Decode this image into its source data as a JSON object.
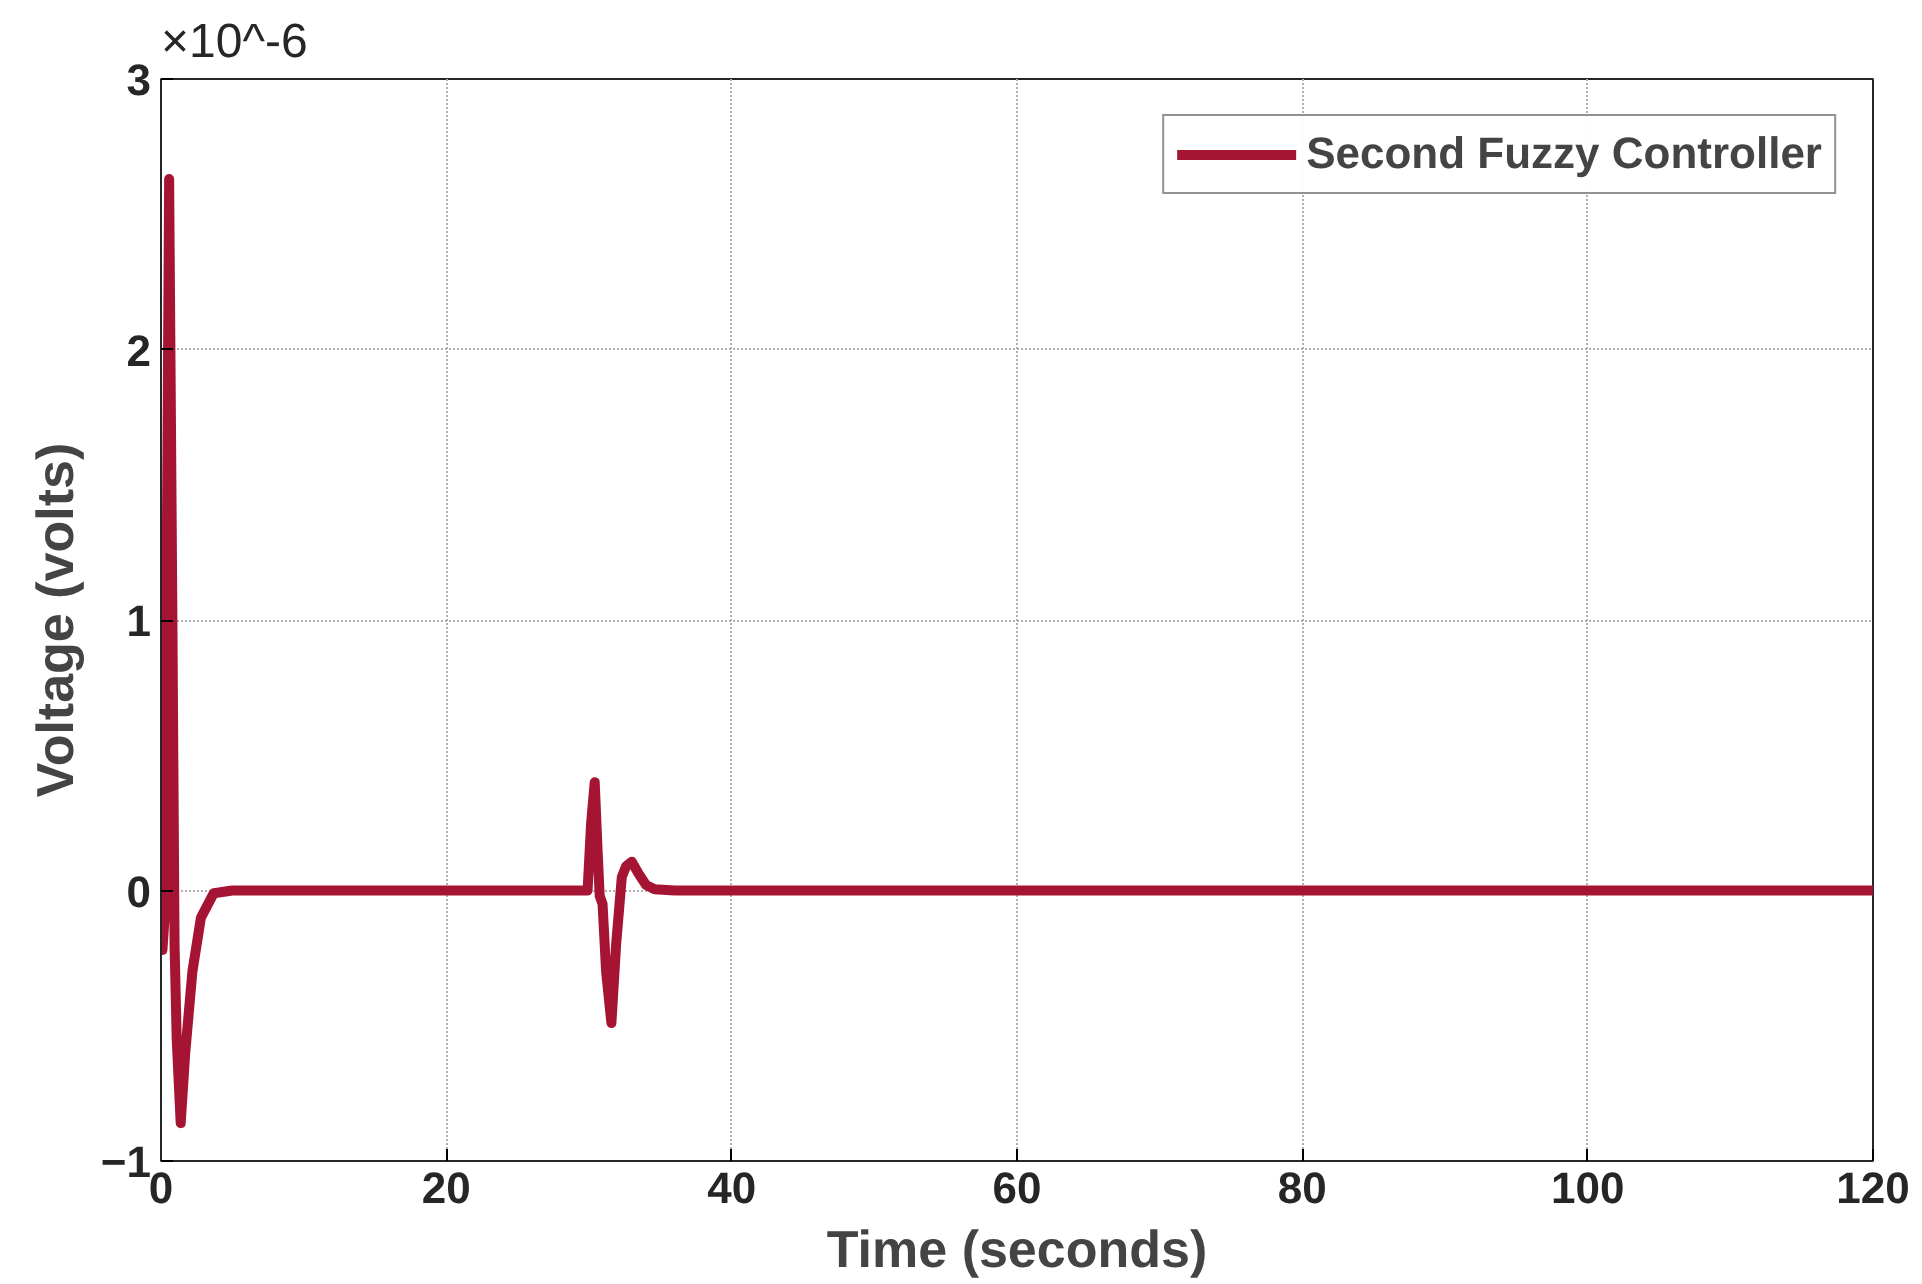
{
  "chart_data": {
    "type": "line",
    "xlabel": "Time (seconds)",
    "ylabel": "Voltage (volts)",
    "annotations": [
      "×10^-6"
    ],
    "x": [
      0,
      0.1,
      0.25,
      0.57,
      0.8,
      0.95,
      1.1,
      1.38,
      1.7,
      2.2,
      2.8,
      3.7,
      5,
      10,
      29.7,
      29.9,
      30.15,
      30.4,
      30.6,
      30.75,
      30.95,
      31.2,
      31.57,
      31.9,
      32.3,
      32.6,
      33.0,
      33.5,
      34.0,
      34.6,
      36,
      60,
      120
    ],
    "series": [
      {
        "name": "Second Fuzzy Controller",
        "color": "#a51432",
        "values": [
          0,
          -0.22,
          -0.1,
          2.63,
          1.0,
          -0.2,
          -0.55,
          -0.86,
          -0.6,
          -0.3,
          -0.1,
          -0.01,
          0,
          0,
          0,
          0.0,
          0.25,
          0.4,
          0.15,
          -0.02,
          -0.05,
          -0.3,
          -0.49,
          -0.2,
          0.05,
          0.09,
          0.106,
          0.06,
          0.02,
          0.005,
          0,
          0,
          0
        ]
      }
    ],
    "xlim": [
      0,
      120
    ],
    "ylim": [
      -1,
      3
    ],
    "xticks": [
      0,
      20,
      40,
      60,
      80,
      100,
      120
    ],
    "yticks": [
      -1,
      0,
      1,
      2,
      3
    ],
    "grid": true,
    "legend": "top right",
    "line_style": "solid",
    "marker": "none"
  }
}
